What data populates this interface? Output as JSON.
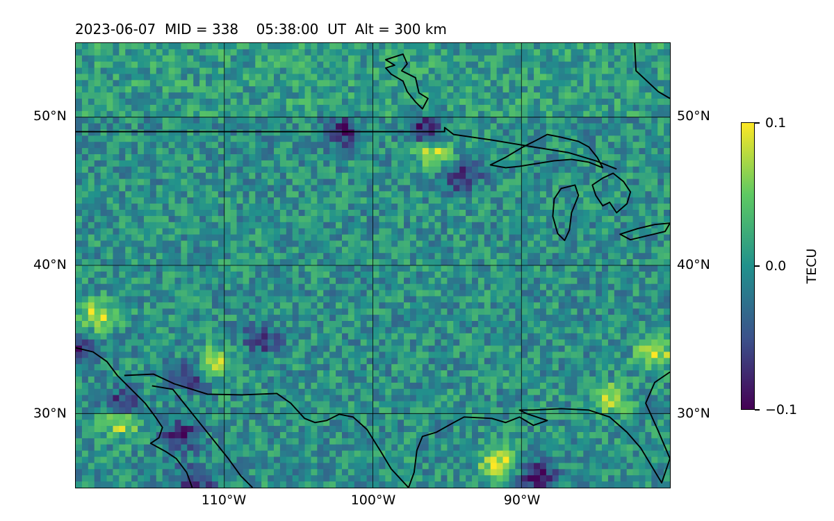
{
  "title": "2023-06-07  MID = 338    05:38:00  UT  Alt = 300 km",
  "map": {
    "extent_lon": [
      -120,
      -80
    ],
    "extent_lat": [
      25,
      55
    ],
    "lat_grid": [
      30,
      40,
      50
    ],
    "lon_grid": [
      -110,
      -100,
      -90
    ],
    "grid": true,
    "lat_labels": [
      "30°N",
      "40°N",
      "50°N"
    ],
    "lon_labels": [
      "110°W",
      "100°W",
      "90°W"
    ],
    "features": [
      "coastlines",
      "country borders",
      "Great Lakes"
    ]
  },
  "colorbar": {
    "label": "TECU",
    "colormap": "viridis",
    "vmin": -0.1,
    "vmax": 0.1,
    "ticks": [
      "0.1",
      "0.0",
      "−0.1"
    ]
  },
  "chart_data": {
    "type": "heatmap",
    "title": "2023-06-07  MID = 338    05:38:00  UT  Alt = 300 km",
    "xlabel": "",
    "ylabel": "",
    "xlim": [
      -120,
      -80
    ],
    "ylim": [
      25,
      55
    ],
    "z_label": "TECU",
    "zlim": [
      -0.1,
      0.1
    ],
    "background_value": 0.0,
    "hotspots": [
      {
        "lon": -91.5,
        "lat": 26.5,
        "value": 0.1
      },
      {
        "lon": -117,
        "lat": 29.5,
        "value": 0.1
      },
      {
        "lon": -110.5,
        "lat": 33.5,
        "value": 0.08
      },
      {
        "lon": -118.5,
        "lat": 36.5,
        "value": 0.09
      },
      {
        "lon": -84,
        "lat": 31,
        "value": 0.08
      },
      {
        "lon": -81,
        "lat": 34,
        "value": 0.08
      },
      {
        "lon": -96,
        "lat": 47.5,
        "value": 0.08
      },
      {
        "lon": -89,
        "lat": 25.8,
        "value": -0.1
      },
      {
        "lon": -117,
        "lat": 30.5,
        "value": -0.09
      },
      {
        "lon": -113,
        "lat": 28.5,
        "value": -0.09
      },
      {
        "lon": -112,
        "lat": 25.5,
        "value": -0.08
      },
      {
        "lon": -96.5,
        "lat": 49.2,
        "value": -0.09
      },
      {
        "lon": -102,
        "lat": 49,
        "value": -0.08
      },
      {
        "lon": -94,
        "lat": 46,
        "value": -0.08
      },
      {
        "lon": -112.5,
        "lat": 32.5,
        "value": -0.07
      },
      {
        "lon": -107.5,
        "lat": 35,
        "value": -0.07
      },
      {
        "lon": -119.5,
        "lat": 34.5,
        "value": -0.07
      }
    ]
  }
}
